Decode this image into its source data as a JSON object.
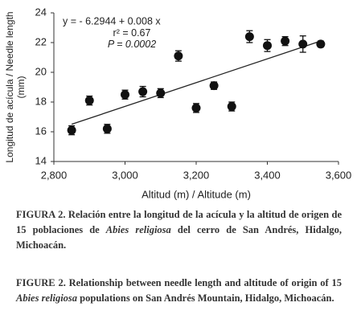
{
  "chart_data": {
    "type": "scatter",
    "x_label": "Altitud (m) / Altitude (m)",
    "y_label": [
      "Longitud de acícula / Needle length",
      "(mm)"
    ],
    "x": [
      2850,
      2900,
      2950,
      3000,
      3050,
      3100,
      3150,
      3200,
      3250,
      3300,
      3350,
      3400,
      3450,
      3500,
      3550
    ],
    "values": [
      16.1,
      18.1,
      16.2,
      18.5,
      18.7,
      18.6,
      21.1,
      17.6,
      19.1,
      17.7,
      22.4,
      21.8,
      22.1,
      21.9,
      21.9
    ],
    "errors": [
      0.3,
      0.3,
      0.3,
      0.3,
      0.35,
      0.3,
      0.35,
      0.3,
      0.25,
      0.3,
      0.4,
      0.4,
      0.3,
      0.55,
      0.2
    ],
    "color": "#111111",
    "trend": {
      "intercept": -6.2944,
      "slope": 0.008
    },
    "annotations": [
      "y = - 6.2944 + 0.008 x",
      "r² = 0.67",
      "P = 0.0002"
    ],
    "xlim": [
      2800,
      3600
    ],
    "xticks": [
      {
        "value": 2800,
        "label": "2,800"
      },
      {
        "value": 3000,
        "label": "3,000"
      },
      {
        "value": 3200,
        "label": "3,200"
      },
      {
        "value": 3400,
        "label": "3,400"
      },
      {
        "value": 3600,
        "label": "3,600"
      }
    ],
    "ylim": [
      14,
      24
    ],
    "yticks": [
      14,
      16,
      18,
      20,
      22,
      24
    ]
  },
  "captions": [
    [
      "FIGURA 2. Relación entre la longitud de la acícula y la altitud de origen de 15 poblaciones de ",
      "Abies religiosa",
      " del cerro de San Andrés, Hidalgo, Michoacán."
    ],
    [
      "FIGURE 2. Relationship between needle length and altitude of origin of 15 ",
      "Abies religiosa",
      " populations on San Andrés Mountain, Hidalgo, Michoacán."
    ]
  ]
}
